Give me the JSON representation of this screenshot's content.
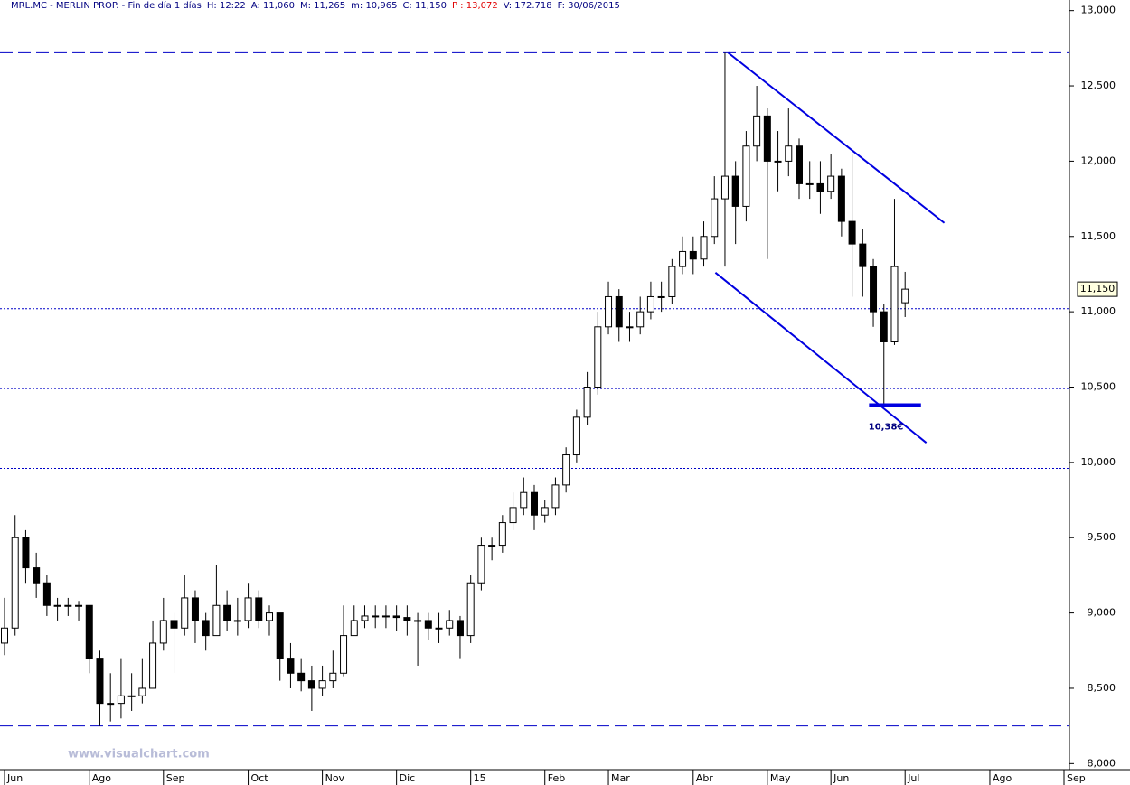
{
  "chart_data": {
    "type": "candlestick",
    "header": [
      "MRL.MC - MERLIN PROP. - Fin de día 1 días",
      "H: 12:22",
      "A: 11,060",
      "M: 11,265",
      "m: 10,965",
      "C: 11,150",
      "P : 13,072",
      "V: 172.718",
      "F: 30/06/2015"
    ],
    "watermark": "www.visualchart.com",
    "color": "#000000",
    "categories": [
      "Jun",
      null,
      null,
      null,
      null,
      null,
      null,
      null,
      "Ago",
      null,
      null,
      null,
      null,
      null,
      null,
      "Sep",
      null,
      null,
      null,
      null,
      null,
      null,
      null,
      "Oct",
      null,
      null,
      null,
      null,
      null,
      null,
      "Nov",
      null,
      null,
      null,
      null,
      null,
      null,
      "Dic",
      null,
      null,
      null,
      null,
      null,
      null,
      "15",
      null,
      null,
      null,
      null,
      null,
      null,
      "Feb",
      null,
      null,
      null,
      null,
      null,
      "Mar",
      null,
      null,
      null,
      null,
      null,
      null,
      null,
      "Abr",
      null,
      null,
      null,
      null,
      null,
      null,
      "May",
      null,
      null,
      null,
      null,
      null,
      "Jun",
      null,
      null,
      null,
      null,
      null,
      null,
      "Jul",
      null,
      null,
      null,
      null,
      null,
      null,
      null,
      "Ago",
      null,
      null,
      null,
      null,
      null,
      null,
      "Sep"
    ],
    "open": [
      8.8,
      8.9,
      9.5,
      9.3,
      9.2,
      9.05,
      9.05,
      9.05,
      9.05,
      8.7,
      8.4,
      8.4,
      8.45,
      8.45,
      8.5,
      8.8,
      8.95,
      8.9,
      9.1,
      8.95,
      8.85,
      9.05,
      8.95,
      8.95,
      9.1,
      8.95,
      9.0,
      8.7,
      8.6,
      8.55,
      8.5,
      8.55,
      8.6,
      8.85,
      8.95,
      8.98,
      8.98,
      8.98,
      8.97,
      8.95,
      8.95,
      8.9,
      8.9,
      8.95,
      8.85,
      9.2,
      9.45,
      9.45,
      9.6,
      9.7,
      9.8,
      9.65,
      9.7,
      9.85,
      10.05,
      10.3,
      10.5,
      10.9,
      11.1,
      10.9,
      10.9,
      11.0,
      11.1,
      11.1,
      11.3,
      11.4,
      11.35,
      11.5,
      11.75,
      11.9,
      11.7,
      12.1,
      12.3,
      12.0,
      12.0,
      12.1,
      11.85,
      11.85,
      11.8,
      11.9,
      11.6,
      11.45,
      11.3,
      11.0,
      10.8,
      11.06,
      null,
      null,
      null,
      null,
      null,
      null,
      null,
      null,
      null,
      null,
      null,
      null,
      null,
      null,
      null
    ],
    "high": [
      9.1,
      9.65,
      9.55,
      9.4,
      9.25,
      9.1,
      9.1,
      9.08,
      9.05,
      8.75,
      8.6,
      8.7,
      8.6,
      8.7,
      8.95,
      9.1,
      9.0,
      9.25,
      9.15,
      9.0,
      9.32,
      9.15,
      9.1,
      9.2,
      9.15,
      9.05,
      9.0,
      8.8,
      8.7,
      8.65,
      8.65,
      8.75,
      9.05,
      9.05,
      9.05,
      9.05,
      9.05,
      9.05,
      9.05,
      9.0,
      9.0,
      9.0,
      9.02,
      8.98,
      9.25,
      9.5,
      9.5,
      9.65,
      9.8,
      9.9,
      9.85,
      9.75,
      9.9,
      10.1,
      10.35,
      10.6,
      11.0,
      11.2,
      11.15,
      11.0,
      11.1,
      11.2,
      11.2,
      11.35,
      11.5,
      11.5,
      11.6,
      11.9,
      12.72,
      12.0,
      12.2,
      12.5,
      12.35,
      12.2,
      12.35,
      12.15,
      12.0,
      12.0,
      12.05,
      11.95,
      12.05,
      11.55,
      11.35,
      11.05,
      11.75,
      11.265,
      null,
      null,
      null,
      null,
      null,
      null,
      null,
      null,
      null,
      null,
      null,
      null,
      null,
      null,
      null
    ],
    "low": [
      8.72,
      8.85,
      9.2,
      9.1,
      8.98,
      8.95,
      8.98,
      8.95,
      8.6,
      8.25,
      8.28,
      8.3,
      8.35,
      8.4,
      8.5,
      8.75,
      8.6,
      8.85,
      8.8,
      8.75,
      8.85,
      8.88,
      8.85,
      8.9,
      8.9,
      8.85,
      8.55,
      8.5,
      8.48,
      8.35,
      8.45,
      8.5,
      8.58,
      8.85,
      8.9,
      8.9,
      8.9,
      8.88,
      8.85,
      8.65,
      8.82,
      8.8,
      8.85,
      8.7,
      8.8,
      9.15,
      9.35,
      9.4,
      9.55,
      9.65,
      9.55,
      9.6,
      9.65,
      9.8,
      10.0,
      10.25,
      10.45,
      10.85,
      10.8,
      10.8,
      10.85,
      10.95,
      11.0,
      11.05,
      11.25,
      11.25,
      11.3,
      11.45,
      11.3,
      11.45,
      11.6,
      12.0,
      11.35,
      11.8,
      11.9,
      11.75,
      11.75,
      11.65,
      11.75,
      11.5,
      11.1,
      11.1,
      10.9,
      10.38,
      10.78,
      10.965,
      null,
      null,
      null,
      null,
      null,
      null,
      null,
      null,
      null,
      null,
      null,
      null,
      null,
      null,
      null
    ],
    "close": [
      8.9,
      9.5,
      9.3,
      9.2,
      9.05,
      9.05,
      9.05,
      9.05,
      8.7,
      8.4,
      8.4,
      8.45,
      8.45,
      8.5,
      8.8,
      8.95,
      8.9,
      9.1,
      8.95,
      8.85,
      9.05,
      8.95,
      8.95,
      9.1,
      8.95,
      9.0,
      8.7,
      8.6,
      8.55,
      8.5,
      8.55,
      8.6,
      8.85,
      8.95,
      8.98,
      8.98,
      8.98,
      8.97,
      8.95,
      8.95,
      8.9,
      8.9,
      8.95,
      8.85,
      9.2,
      9.45,
      9.45,
      9.6,
      9.7,
      9.8,
      9.65,
      9.7,
      9.85,
      10.05,
      10.3,
      10.5,
      10.9,
      11.1,
      10.9,
      10.9,
      11.0,
      11.1,
      11.1,
      11.3,
      11.4,
      11.35,
      11.5,
      11.75,
      11.9,
      11.7,
      12.1,
      12.3,
      12.0,
      12.0,
      12.1,
      11.85,
      11.85,
      11.8,
      11.9,
      11.6,
      11.45,
      11.3,
      11.0,
      10.8,
      11.3,
      11.15,
      null,
      null,
      null,
      null,
      null,
      null,
      null,
      null,
      null,
      null,
      null,
      null,
      null,
      null,
      null
    ],
    "last_price_label": "11,150",
    "ylim": [
      7.96,
      13.07
    ],
    "yticks": [
      {
        "value": 8,
        "label": "8,000"
      },
      {
        "value": 8.5,
        "label": "8,500"
      },
      {
        "value": 9,
        "label": "9,000"
      },
      {
        "value": 9.5,
        "label": "9,500"
      },
      {
        "value": 10,
        "label": "10,000"
      },
      {
        "value": 10.5,
        "label": "10,500"
      },
      {
        "value": 11,
        "label": "11,000"
      },
      {
        "value": 11.5,
        "label": "11,500"
      },
      {
        "value": 12,
        "label": "12,000"
      },
      {
        "value": 12.5,
        "label": "12,500"
      },
      {
        "value": 13,
        "label": "13,000"
      }
    ],
    "levels": [
      {
        "value": 12.72,
        "style": "dashed"
      },
      {
        "value": 11.02,
        "style": "dotted"
      },
      {
        "value": 10.49,
        "style": "dotted"
      },
      {
        "value": 9.96,
        "style": "dotted"
      },
      {
        "value": 8.25,
        "style": "dashed"
      }
    ],
    "level_color": "#0000c8",
    "trendlines": [
      {
        "x": [
          68.3,
          88.7
        ],
        "y": [
          12.72,
          11.59
        ]
      },
      {
        "x": [
          67.1,
          87.0
        ],
        "y": [
          11.26,
          10.13
        ]
      }
    ],
    "annotation": {
      "text": "10,38€",
      "value": 10.38,
      "x": [
        81.6,
        86.5
      ]
    }
  }
}
